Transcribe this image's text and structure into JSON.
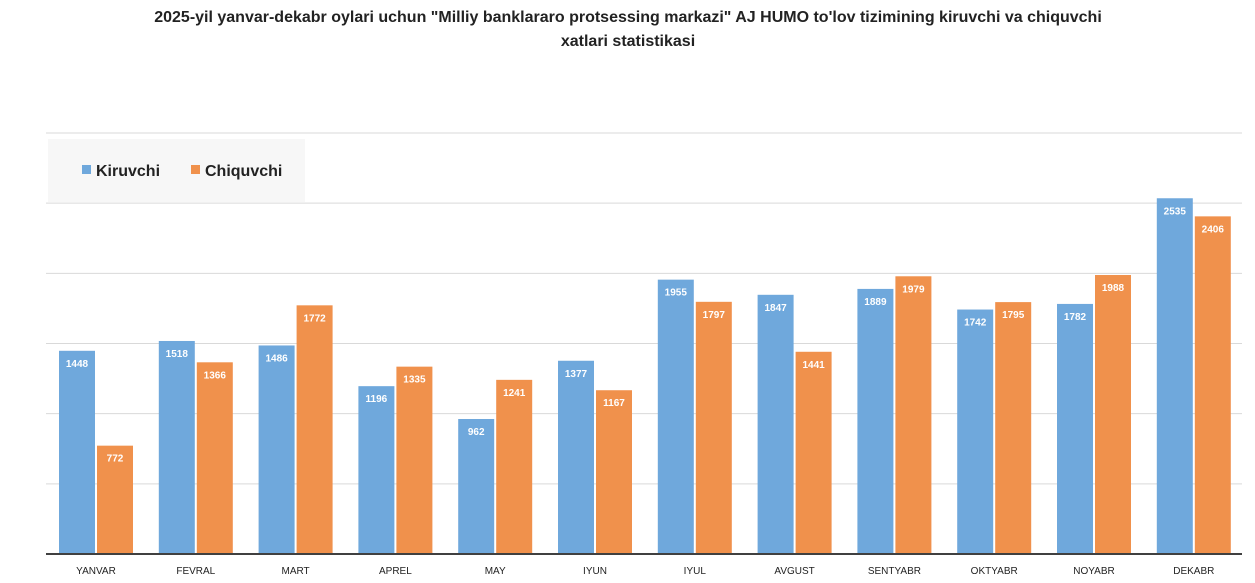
{
  "chart_data": {
    "type": "bar",
    "title_line1": "2025-yil yanvar-dekabr oylari uchun \"Milliy banklararo protsessing markazi\" AJ HUMO to'lov tizimining kiruvchi va chiquvchi",
    "title_line2": "xatlari statistikasi",
    "categories": [
      "YANVAR",
      "FEVRAL",
      "MART",
      "APREL",
      "MAY",
      "IYUN",
      "IYUL",
      "AVGUST",
      "SENTYABR",
      "OKTYABR",
      "NOYABR",
      "DEKABR"
    ],
    "series": [
      {
        "name": "Kiruvchi",
        "color": "#6FA8DC",
        "values": [
          1448,
          1518,
          1486,
          1196,
          962,
          1377,
          1955,
          1847,
          1889,
          1742,
          1782,
          2535
        ]
      },
      {
        "name": "Chiquvchi",
        "color": "#F0914C",
        "values": [
          772,
          1366,
          1772,
          1335,
          1241,
          1167,
          1797,
          1441,
          1979,
          1795,
          1988,
          2406
        ]
      }
    ],
    "ylim": [
      0,
      3000
    ],
    "gridlines": [
      500,
      1000,
      1500,
      2000,
      2500,
      3000
    ],
    "grid": true,
    "legend_position": "top-left",
    "data_labels": true,
    "y_tick_labels_shown": false,
    "gridline_color": "#D9D9D9",
    "axis_color": "#404040",
    "legend_background": "#F7F7F7"
  }
}
